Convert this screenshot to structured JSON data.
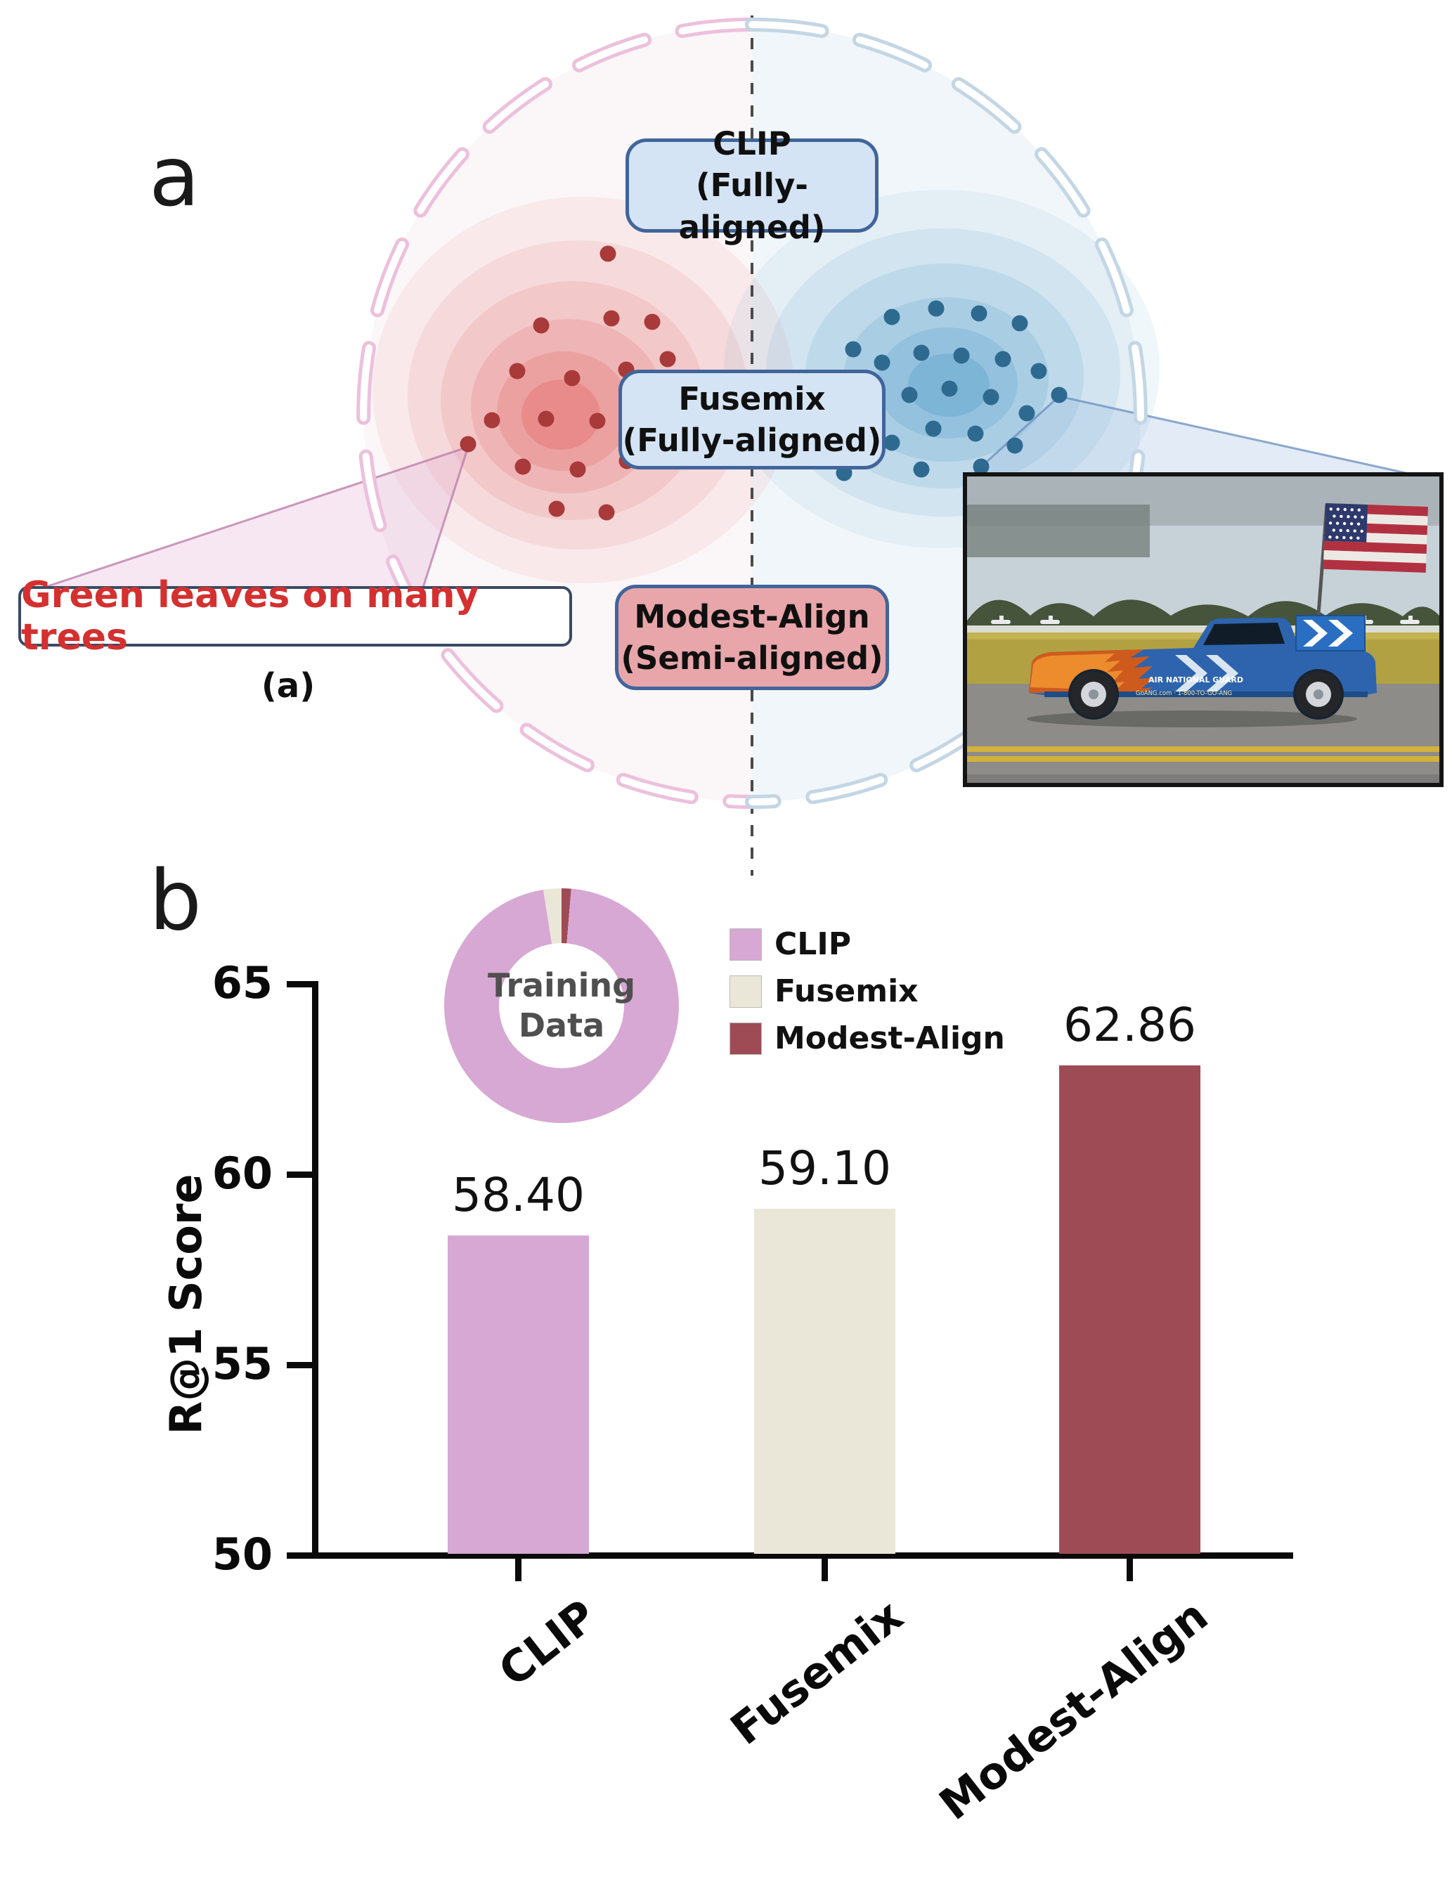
{
  "figure": {
    "panel_a_letter": "a",
    "panel_b_letter": "b"
  },
  "colors": {
    "pink_arc": "#ecc0dc",
    "blue_arc": "#c3d6e5",
    "blue_box_fill": "#d4e4f4",
    "blue_box_border": "#41659a",
    "red_box_fill": "#e8a6aa",
    "red_box_border": "#41659a",
    "red_dot": "#a93a3a",
    "blue_dot": "#2e6a90",
    "red_contour": "#e04848",
    "blue_contour": "#3f93c4",
    "callout_text": "#d43030",
    "callout_border": "#3a4a63",
    "axis": "#0a0a0a",
    "donut_text": "#4f4f4f"
  },
  "panel_a": {
    "boxes": [
      {
        "title": "CLIP",
        "subtitle": "(Fully-aligned)"
      },
      {
        "title": "Fusemix",
        "subtitle": "(Fully-aligned)"
      },
      {
        "title": "Modest-Align",
        "subtitle": "(Semi-aligned)"
      }
    ],
    "callout_text": "Green leaves on many trees",
    "caption": "(a)",
    "red_dots": [
      [
        865,
        361
      ],
      [
        770,
        463
      ],
      [
        870,
        453
      ],
      [
        928,
        458
      ],
      [
        736,
        528
      ],
      [
        814,
        538
      ],
      [
        891,
        526
      ],
      [
        950,
        511
      ],
      [
        700,
        598
      ],
      [
        777,
        596
      ],
      [
        850,
        599
      ],
      [
        913,
        587
      ],
      [
        666,
        632
      ],
      [
        744,
        664
      ],
      [
        822,
        668
      ],
      [
        892,
        656
      ],
      [
        792,
        724
      ],
      [
        863,
        729
      ]
    ],
    "blue_dots": [
      [
        1214,
        497
      ],
      [
        1269,
        451
      ],
      [
        1332,
        439
      ],
      [
        1393,
        446
      ],
      [
        1451,
        460
      ],
      [
        1255,
        516
      ],
      [
        1311,
        502
      ],
      [
        1368,
        506
      ],
      [
        1427,
        511
      ],
      [
        1478,
        528
      ],
      [
        1192,
        562
      ],
      [
        1235,
        588
      ],
      [
        1294,
        562
      ],
      [
        1351,
        553
      ],
      [
        1410,
        565
      ],
      [
        1461,
        588
      ],
      [
        1507,
        562
      ],
      [
        1269,
        630
      ],
      [
        1328,
        610
      ],
      [
        1388,
        617
      ],
      [
        1444,
        634
      ],
      [
        1201,
        673
      ],
      [
        1311,
        668
      ],
      [
        1396,
        664
      ]
    ]
  },
  "photo": {
    "texts": [
      "AIR NATIONAL GUARD",
      "GoANG.com · 1-800-TO-GO-ANG"
    ]
  },
  "panel_b": {
    "donut_title_1": "Training",
    "donut_title_2": "Data",
    "legend": [
      {
        "label": "CLIP",
        "color": "#d7a8d3"
      },
      {
        "label": "Fusemix",
        "color": "#eae7d8"
      },
      {
        "label": "Modest-Align",
        "color": "#9e4b56"
      }
    ]
  },
  "chart_data": [
    {
      "type": "bar",
      "categories": [
        "CLIP",
        "Fusemix",
        "Modest-Align"
      ],
      "values": [
        58.4,
        59.1,
        62.86
      ],
      "value_labels": [
        "58.40",
        "59.10",
        "62.86"
      ],
      "bar_colors": [
        "#d7a8d3",
        "#eae7d8",
        "#9e4b56"
      ],
      "ylabel": "R@1 Score",
      "xlabel": "",
      "ylim": [
        50,
        65
      ],
      "yticks": [
        65,
        60,
        55,
        50
      ],
      "grid": false,
      "legend_position": "top-left"
    },
    {
      "type": "pie",
      "title": "Training Data",
      "slices": [
        {
          "name": "Modest-Align",
          "pct": 1.3,
          "color": "#9e4b56"
        },
        {
          "name": "CLIP",
          "pct": 96.2,
          "color": "#d7a8d3"
        },
        {
          "name": "Fusemix",
          "pct": 2.5,
          "color": "#eae7d8"
        }
      ]
    }
  ]
}
